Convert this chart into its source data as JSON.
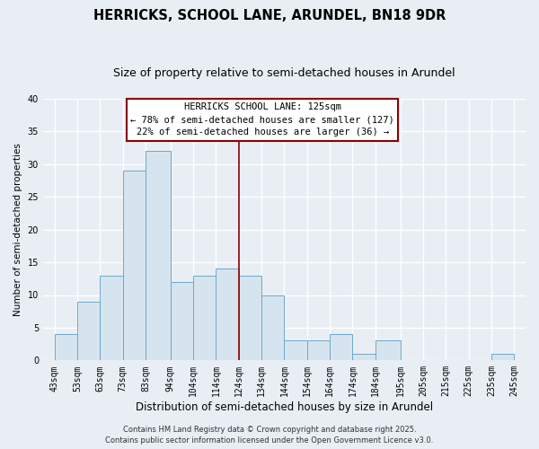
{
  "title": "HERRICKS, SCHOOL LANE, ARUNDEL, BN18 9DR",
  "subtitle": "Size of property relative to semi-detached houses in Arundel",
  "xlabel": "Distribution of semi-detached houses by size in Arundel",
  "ylabel": "Number of semi-detached properties",
  "bins_left": [
    43,
    53,
    63,
    73,
    83,
    94,
    104,
    114,
    124,
    134,
    144,
    154,
    164,
    174,
    184,
    195,
    205,
    215,
    225,
    235
  ],
  "bin_widths": [
    10,
    10,
    10,
    10,
    11,
    10,
    10,
    10,
    10,
    10,
    10,
    10,
    10,
    10,
    11,
    10,
    10,
    10,
    10,
    10
  ],
  "counts": [
    4,
    9,
    13,
    29,
    32,
    12,
    13,
    14,
    13,
    10,
    3,
    3,
    4,
    1,
    3,
    0,
    0,
    0,
    0,
    1
  ],
  "bar_color": "#d6e4f0",
  "bar_edge_color": "#6fa8c8",
  "bar_edge_width": 0.7,
  "vline_x": 124,
  "vline_color": "#8b0000",
  "ylim": [
    0,
    40
  ],
  "yticks": [
    0,
    5,
    10,
    15,
    20,
    25,
    30,
    35,
    40
  ],
  "xtick_positions": [
    43,
    53,
    63,
    73,
    83,
    94,
    104,
    114,
    124,
    134,
    144,
    154,
    164,
    174,
    184,
    195,
    205,
    215,
    225,
    235,
    245
  ],
  "xtick_labels": [
    "43sqm",
    "53sqm",
    "63sqm",
    "73sqm",
    "83sqm",
    "94sqm",
    "104sqm",
    "114sqm",
    "124sqm",
    "134sqm",
    "144sqm",
    "154sqm",
    "164sqm",
    "174sqm",
    "184sqm",
    "195sqm",
    "205sqm",
    "215sqm",
    "225sqm",
    "235sqm",
    "245sqm"
  ],
  "annotation_title": "HERRICKS SCHOOL LANE: 125sqm",
  "annotation_line1": "← 78% of semi-detached houses are smaller (127)",
  "annotation_line2": "22% of semi-detached houses are larger (36) →",
  "annotation_box_color": "#ffffff",
  "annotation_box_edge": "#8b0000",
  "footnote1": "Contains HM Land Registry data © Crown copyright and database right 2025.",
  "footnote2": "Contains public sector information licensed under the Open Government Licence v3.0.",
  "background_color": "#e8eef4",
  "grid_color": "#ffffff",
  "title_fontsize": 10.5,
  "subtitle_fontsize": 9,
  "xlabel_fontsize": 8.5,
  "ylabel_fontsize": 7.5,
  "tick_fontsize": 7,
  "annotation_fontsize": 7.5,
  "footnote_fontsize": 6
}
